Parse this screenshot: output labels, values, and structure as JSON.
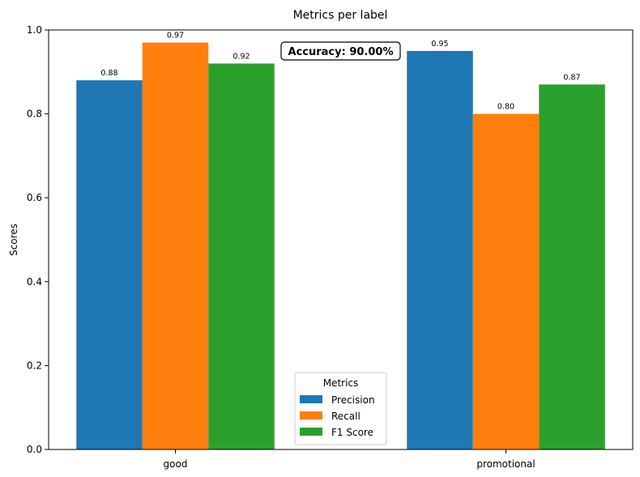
{
  "chart_data": {
    "type": "bar",
    "title": "Metrics per label",
    "ylabel": "Scores",
    "xlabel": "",
    "categories": [
      "good",
      "promotional"
    ],
    "series": [
      {
        "name": "Precision",
        "values": [
          0.88,
          0.95
        ],
        "labels": [
          "0.88",
          "0.95"
        ],
        "color": "#1f77b4"
      },
      {
        "name": "Recall",
        "values": [
          0.97,
          0.8
        ],
        "labels": [
          "0.97",
          "0.80"
        ],
        "color": "#ff7f0e"
      },
      {
        "name": "F1 Score",
        "values": [
          0.92,
          0.87
        ],
        "labels": [
          "0.92",
          "0.87"
        ],
        "color": "#2ca02c"
      }
    ],
    "ylim": [
      0,
      1.0
    ],
    "yticks": [
      "0.0",
      "0.2",
      "0.4",
      "0.6",
      "0.8",
      "1.0"
    ],
    "legend": {
      "title": "Metrics",
      "placement": "lower-center"
    },
    "annotation": "Accuracy: 90.00%",
    "grid": false
  }
}
